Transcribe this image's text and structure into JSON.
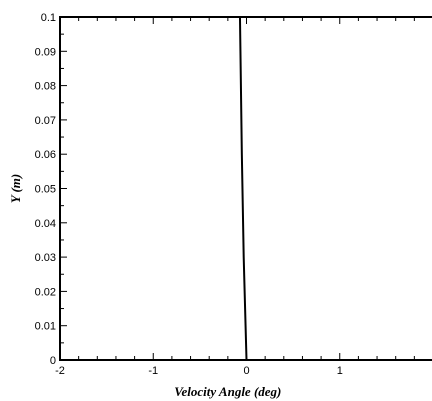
{
  "chart_data": {
    "type": "line",
    "title": "",
    "xlabel": "Velocity Angle (deg)",
    "ylabel": "Y (m)",
    "xlim": [
      -2,
      2
    ],
    "ylim": [
      0,
      0.1
    ],
    "grid": false,
    "x_ticks": [
      -2,
      -1,
      0,
      1
    ],
    "x_tick_labels": [
      "-2",
      "-1",
      "0",
      "1"
    ],
    "y_ticks": [
      0,
      0.01,
      0.02,
      0.03,
      0.04,
      0.05,
      0.06,
      0.07,
      0.08,
      0.09,
      0.1
    ],
    "y_tick_labels": [
      "0",
      "0.01",
      "0.02",
      "0.03",
      "0.04",
      "0.05",
      "0.06",
      "0.07",
      "0.08",
      "0.09",
      "0.1"
    ],
    "series": [
      {
        "x": [
          0.0,
          -0.01,
          -0.02,
          -0.03,
          -0.04,
          -0.05,
          -0.055,
          -0.06,
          -0.065,
          -0.07
        ],
        "y": [
          0.0,
          0.01,
          0.02,
          0.03,
          0.045,
          0.06,
          0.07,
          0.08,
          0.09,
          0.1
        ],
        "color": "#000000"
      }
    ]
  }
}
